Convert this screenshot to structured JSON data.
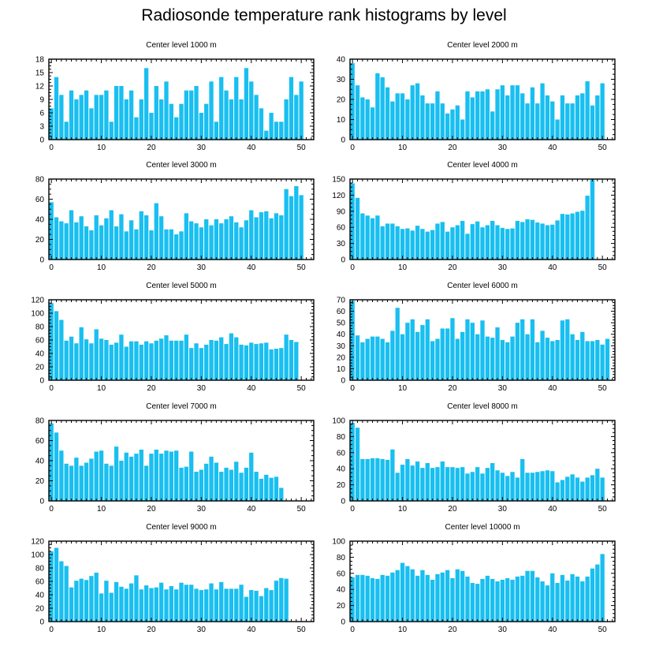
{
  "figure": {
    "title": "Radiosonde temperature rank histograms by level"
  },
  "colors": {
    "bar": "#19bff0",
    "axis": "#000000",
    "background": "#ffffff"
  },
  "chart_data": [
    {
      "type": "bar",
      "title": "Center level 1000 m",
      "xlabel": "",
      "ylabel": "",
      "xlim": [
        -0.5,
        52.5
      ],
      "ylim": [
        0,
        18
      ],
      "xticks": [
        0,
        10,
        20,
        30,
        40,
        50
      ],
      "yticks": [
        0,
        3,
        6,
        9,
        12,
        15,
        18
      ],
      "values": [
        7,
        14,
        10,
        4,
        11,
        9,
        10,
        11,
        7,
        10,
        10,
        11,
        4,
        12,
        12,
        9,
        11,
        5,
        9,
        16,
        6,
        12,
        9,
        13,
        8,
        5,
        8,
        11,
        11,
        12,
        6,
        8,
        13,
        4,
        14,
        11,
        9,
        14,
        9,
        16,
        13,
        10,
        7,
        2,
        6,
        4,
        4,
        9,
        14,
        10,
        13
      ]
    },
    {
      "type": "bar",
      "title": "Center level 2000 m",
      "xlabel": "",
      "ylabel": "",
      "xlim": [
        -0.5,
        52.5
      ],
      "ylim": [
        0,
        40
      ],
      "xticks": [
        0,
        10,
        20,
        30,
        40,
        50
      ],
      "yticks": [
        0,
        10,
        20,
        30,
        40
      ],
      "values": [
        38,
        27,
        21,
        20,
        16,
        33,
        31,
        26,
        19,
        23,
        23,
        20,
        27,
        28,
        22,
        18,
        18,
        24,
        18,
        13,
        15,
        17,
        10,
        24,
        21,
        24,
        24,
        25,
        14,
        25,
        27,
        22,
        27,
        27,
        23,
        18,
        26,
        18,
        28,
        22,
        19,
        10,
        22,
        18,
        18,
        22,
        23,
        29,
        17,
        22,
        28
      ]
    },
    {
      "type": "bar",
      "title": "Center level 3000 m",
      "xlabel": "",
      "ylabel": "",
      "xlim": [
        -0.5,
        52.5
      ],
      "ylim": [
        0,
        80
      ],
      "xticks": [
        0,
        10,
        20,
        30,
        40,
        50
      ],
      "yticks": [
        0,
        20,
        40,
        60,
        80
      ],
      "values": [
        57,
        42,
        38,
        36,
        49,
        37,
        43,
        33,
        29,
        44,
        34,
        41,
        49,
        33,
        45,
        28,
        39,
        30,
        48,
        44,
        29,
        56,
        43,
        30,
        30,
        25,
        28,
        46,
        38,
        36,
        32,
        40,
        34,
        40,
        36,
        40,
        43,
        37,
        32,
        39,
        49,
        42,
        47,
        48,
        41,
        46,
        44,
        70,
        63,
        73,
        64
      ]
    },
    {
      "type": "bar",
      "title": "Center level 4000 m",
      "xlabel": "",
      "ylabel": "",
      "xlim": [
        -0.5,
        52.5
      ],
      "ylim": [
        0,
        150
      ],
      "xticks": [
        0,
        10,
        20,
        30,
        40,
        50
      ],
      "yticks": [
        0,
        30,
        60,
        90,
        120,
        150
      ],
      "values": [
        142,
        115,
        86,
        82,
        77,
        82,
        62,
        67,
        67,
        62,
        57,
        58,
        54,
        63,
        57,
        52,
        55,
        67,
        70,
        52,
        60,
        64,
        72,
        48,
        66,
        71,
        60,
        64,
        72,
        64,
        59,
        57,
        58,
        72,
        70,
        75,
        74,
        69,
        67,
        64,
        65,
        73,
        85,
        84,
        86,
        89,
        91,
        119,
        149
      ]
    },
    {
      "type": "bar",
      "title": "Center level 5000 m",
      "xlabel": "",
      "ylabel": "",
      "xlim": [
        -0.5,
        52.5
      ],
      "ylim": [
        0,
        120
      ],
      "xticks": [
        0,
        10,
        20,
        30,
        40,
        50
      ],
      "yticks": [
        0,
        20,
        40,
        60,
        80,
        100,
        120
      ],
      "values": [
        115,
        103,
        90,
        59,
        65,
        55,
        79,
        61,
        55,
        76,
        62,
        60,
        53,
        56,
        68,
        50,
        58,
        58,
        53,
        58,
        55,
        59,
        62,
        67,
        59,
        59,
        59,
        68,
        48,
        55,
        48,
        53,
        60,
        59,
        64,
        54,
        70,
        64,
        53,
        52,
        56,
        54,
        55,
        56,
        46,
        47,
        48,
        68,
        60,
        57
      ]
    },
    {
      "type": "bar",
      "title": "Center level 6000 m",
      "xlabel": "",
      "ylabel": "",
      "xlim": [
        -0.5,
        52.5
      ],
      "ylim": [
        0,
        70
      ],
      "xticks": [
        0,
        10,
        20,
        30,
        40,
        50
      ],
      "yticks": [
        0,
        10,
        20,
        30,
        40,
        50,
        60,
        70
      ],
      "values": [
        69,
        39,
        33,
        36,
        38,
        38,
        36,
        33,
        43,
        63,
        40,
        50,
        53,
        42,
        48,
        53,
        34,
        36,
        45,
        45,
        54,
        36,
        42,
        53,
        50,
        40,
        52,
        38,
        37,
        46,
        35,
        33,
        38,
        50,
        53,
        40,
        53,
        33,
        43,
        37,
        34,
        35,
        52,
        53,
        40,
        35,
        42,
        34,
        34,
        35,
        31,
        36
      ]
    },
    {
      "type": "bar",
      "title": "Center level 7000 m",
      "xlabel": "",
      "ylabel": "",
      "xlim": [
        -0.5,
        52.5
      ],
      "ylim": [
        0,
        80
      ],
      "xticks": [
        0,
        10,
        20,
        30,
        40,
        50
      ],
      "yticks": [
        0,
        20,
        40,
        60,
        80
      ],
      "values": [
        77,
        68,
        50,
        37,
        35,
        43,
        35,
        38,
        42,
        49,
        50,
        37,
        35,
        54,
        40,
        48,
        44,
        47,
        51,
        35,
        47,
        51,
        47,
        50,
        49,
        50,
        33,
        34,
        49,
        29,
        31,
        37,
        44,
        38,
        29,
        33,
        31,
        39,
        28,
        33,
        48,
        29,
        22,
        26,
        23,
        24,
        13
      ]
    },
    {
      "type": "bar",
      "title": "Center level 8000 m",
      "xlabel": "",
      "ylabel": "",
      "xlim": [
        -0.5,
        52.5
      ],
      "ylim": [
        0,
        100
      ],
      "xticks": [
        0,
        10,
        20,
        30,
        40,
        50
      ],
      "yticks": [
        0,
        20,
        40,
        60,
        80,
        100
      ],
      "values": [
        97,
        91,
        52,
        52,
        53,
        53,
        52,
        51,
        64,
        35,
        45,
        52,
        44,
        49,
        41,
        47,
        41,
        42,
        49,
        42,
        42,
        41,
        42,
        34,
        36,
        42,
        34,
        41,
        47,
        38,
        35,
        31,
        36,
        29,
        52,
        35,
        35,
        36,
        37,
        38,
        37,
        23,
        26,
        30,
        33,
        29,
        24,
        29,
        32,
        40,
        29
      ]
    },
    {
      "type": "bar",
      "title": "Center level 9000 m",
      "xlabel": "",
      "ylabel": "",
      "xlim": [
        -0.5,
        52.5
      ],
      "ylim": [
        0,
        120
      ],
      "xticks": [
        0,
        10,
        20,
        30,
        40,
        50
      ],
      "yticks": [
        0,
        20,
        40,
        60,
        80,
        100,
        120
      ],
      "values": [
        105,
        110,
        90,
        83,
        51,
        61,
        64,
        62,
        68,
        73,
        42,
        61,
        43,
        59,
        52,
        49,
        57,
        69,
        48,
        54,
        50,
        51,
        58,
        48,
        53,
        48,
        58,
        55,
        55,
        49,
        47,
        48,
        57,
        48,
        59,
        49,
        49,
        49,
        55,
        37,
        47,
        46,
        38,
        50,
        47,
        61,
        65,
        64
      ]
    },
    {
      "type": "bar",
      "title": "Center level 10000 m",
      "xlabel": "",
      "ylabel": "",
      "xlim": [
        -0.5,
        52.5
      ],
      "ylim": [
        0,
        100
      ],
      "xticks": [
        0,
        10,
        20,
        30,
        40,
        50
      ],
      "yticks": [
        0,
        20,
        40,
        60,
        80,
        100
      ],
      "values": [
        55,
        58,
        58,
        57,
        54,
        53,
        58,
        57,
        61,
        64,
        73,
        69,
        65,
        57,
        64,
        58,
        52,
        59,
        61,
        64,
        54,
        65,
        63,
        56,
        48,
        47,
        53,
        57,
        53,
        50,
        52,
        54,
        52,
        56,
        57,
        63,
        63,
        55,
        50,
        45,
        60,
        48,
        58,
        51,
        59,
        56,
        50,
        56,
        66,
        71,
        84
      ]
    }
  ]
}
